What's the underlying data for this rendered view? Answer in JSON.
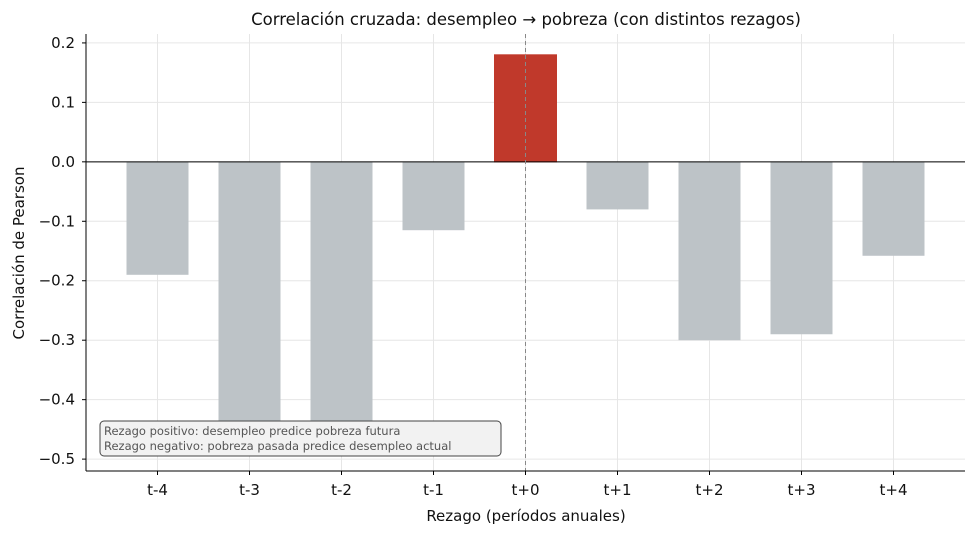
{
  "chart_data": {
    "type": "bar",
    "title": "Correlación cruzada: desempleo → pobreza (con distintos rezagos)",
    "xlabel": "Rezago (períodos anuales)",
    "ylabel": "Correlación de Pearson",
    "categories": [
      "t-4",
      "t-3",
      "t-2",
      "t-1",
      "t+0",
      "t+1",
      "t+2",
      "t+3",
      "t+4"
    ],
    "values": [
      -0.19,
      -0.435,
      -0.435,
      -0.115,
      0.18,
      -0.08,
      -0.3,
      -0.29,
      -0.158
    ],
    "ylim": [
      -0.52,
      0.215
    ],
    "yticks": [
      0.2,
      0.1,
      0.0,
      -0.1,
      -0.2,
      -0.3,
      -0.4,
      -0.5
    ],
    "ytick_labels": [
      "0.2",
      "0.1",
      "0.0",
      "−0.1",
      "−0.2",
      "−0.3",
      "−0.4",
      "−0.5"
    ],
    "highlight_category": "t+0",
    "colors": {
      "default_bar": "#bdc3c7",
      "highlight_bar": "#c0392b",
      "grid": "#e6e6e6",
      "zero_line": "#000000",
      "vline": "#888888"
    },
    "grid": true,
    "annotation": {
      "lines": [
        "Rezago positivo: desempleo predice pobreza futura",
        "Rezago negativo: pobreza pasada predice desempleo actual"
      ],
      "placement": "bottom-left"
    }
  }
}
